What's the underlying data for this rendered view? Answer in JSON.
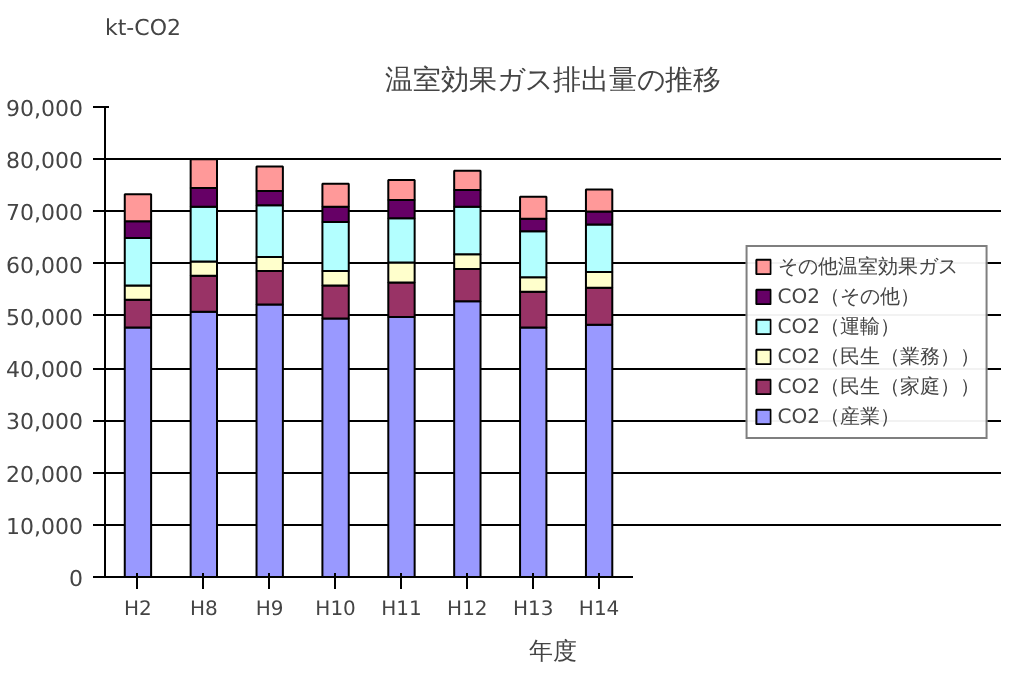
{
  "chart_data": {
    "type": "bar",
    "stacked": true,
    "title": "温室効果ガス排出量の推移",
    "ylabel": "kt-CO2",
    "xlabel": "年度",
    "categories": [
      "H2",
      "H8",
      "H9",
      "H10",
      "H11",
      "H12",
      "H13",
      "H14"
    ],
    "series": [
      {
        "name": "CO2（産業）",
        "color": "#9999ff",
        "values": [
          47800,
          50800,
          52200,
          49500,
          49800,
          52800,
          47800,
          48300
        ]
      },
      {
        "name": "CO2（民生（家庭））",
        "color": "#993366",
        "values": [
          5300,
          6900,
          6400,
          6300,
          6600,
          6200,
          6800,
          7100
        ]
      },
      {
        "name": "CO2（民生（業務））",
        "color": "#ffffcc",
        "values": [
          2700,
          2700,
          2700,
          2800,
          3800,
          2800,
          2800,
          3000
        ]
      },
      {
        "name": "CO2（運輸）",
        "color": "#b3ffff",
        "values": [
          9100,
          10500,
          9900,
          9400,
          8500,
          9100,
          8800,
          9100
        ]
      },
      {
        "name": "CO2（その他）",
        "color": "#660066",
        "values": [
          3200,
          3600,
          2700,
          2900,
          3500,
          3200,
          2400,
          2500
        ]
      },
      {
        "name": "その他温室効果ガス",
        "color": "#ff9999",
        "values": [
          5200,
          5500,
          4700,
          4400,
          3800,
          3700,
          4200,
          4200
        ]
      }
    ],
    "ylim": [
      0,
      90000
    ],
    "yticks": [
      {
        "value": 0,
        "label": "0"
      },
      {
        "value": 10000,
        "label": "10,000"
      },
      {
        "value": 20000,
        "label": "20,000"
      },
      {
        "value": 30000,
        "label": "30,000"
      },
      {
        "value": 40000,
        "label": "40,000"
      },
      {
        "value": 50000,
        "label": "50,000"
      },
      {
        "value": 60000,
        "label": "60,000"
      },
      {
        "value": 70000,
        "label": "70,000"
      },
      {
        "value": 80000,
        "label": "80,000"
      },
      {
        "value": 90000,
        "label": "90,000"
      }
    ],
    "grid": "y",
    "legend": "right"
  }
}
